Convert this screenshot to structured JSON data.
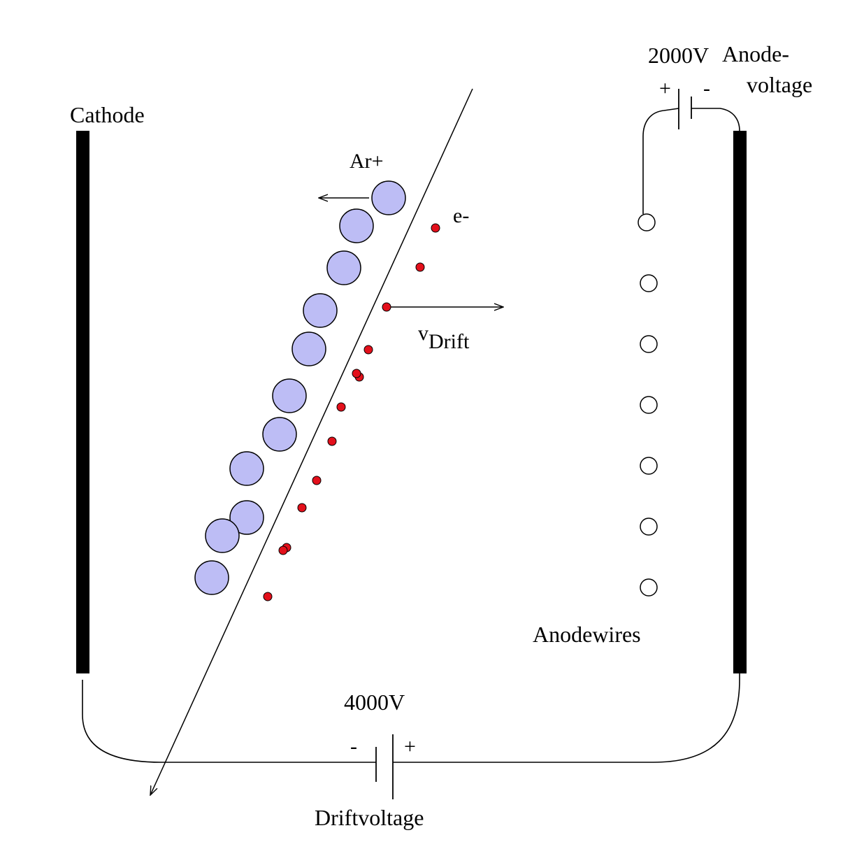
{
  "labels": {
    "cathode": "Cathode",
    "ar_plus": "Ar+",
    "e_minus": "e-",
    "v_drift_v": "v",
    "v_drift_sub": "Drift",
    "anode_voltage_value": "2000V",
    "anode_voltage_name_1": "Anode-",
    "anode_voltage_name_2": "voltage",
    "anode_plus": "+",
    "anode_minus": "-",
    "anodewires": "Anodewires",
    "drift_voltage_value": "4000V",
    "drift_minus": "-",
    "drift_plus": "+",
    "drift_voltage_name": "Driftvoltage"
  },
  "colors": {
    "ion_fill": "#BDBDF5",
    "electron_fill": "#E3101B",
    "plate": "#000000"
  },
  "counts": {
    "ar_ions": 11,
    "electrons": 14,
    "anode_wires": 7
  }
}
